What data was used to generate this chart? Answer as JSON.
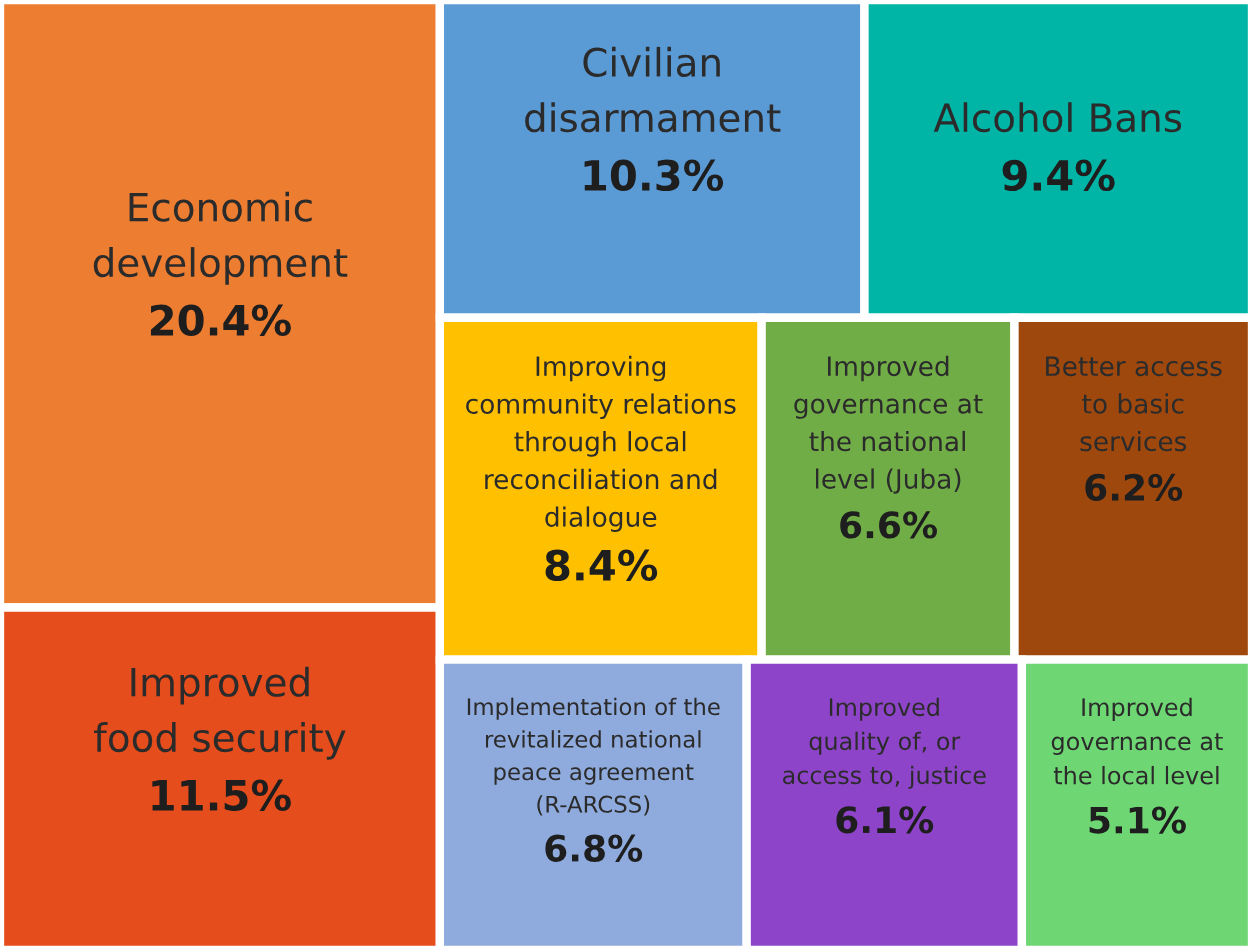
{
  "chart_data": {
    "type": "other",
    "categories": [
      "Economic\ndevelopment",
      "Improved\nfood security",
      "Civilian\ndisarmament",
      "Alcohol Bans",
      "Improving\ncommunity relations\nthrough local\nreconciliation and\ndialogue",
      "Improved\ngovernance at\nthe national\nlevel (Juba)",
      "Better access\nto basic\nservices",
      "Implementation of the\nrevitalized national\npeace agreement\n(R-ARCSS)",
      "Improved\nquality of, or\naccess to, justice",
      "Improved\ngovernance at\nthe local level"
    ],
    "values": [
      20.4,
      11.5,
      10.3,
      9.4,
      8.4,
      6.6,
      6.2,
      6.8,
      6.1,
      5.1
    ],
    "value_labels": [
      "20.4%",
      "11.5%",
      "10.3%",
      "9.4%",
      "8.4%",
      "6.6%",
      "6.2%",
      "6.8%",
      "6.1%",
      "5.1%"
    ],
    "colors": [
      "#ed7d31",
      "#e64d1c",
      "#5b9bd5",
      "#00b5a6",
      "#ffc000",
      "#70ad47",
      "#9e480e",
      "#8faadc",
      "#8e44c8",
      "#6ed673"
    ]
  }
}
